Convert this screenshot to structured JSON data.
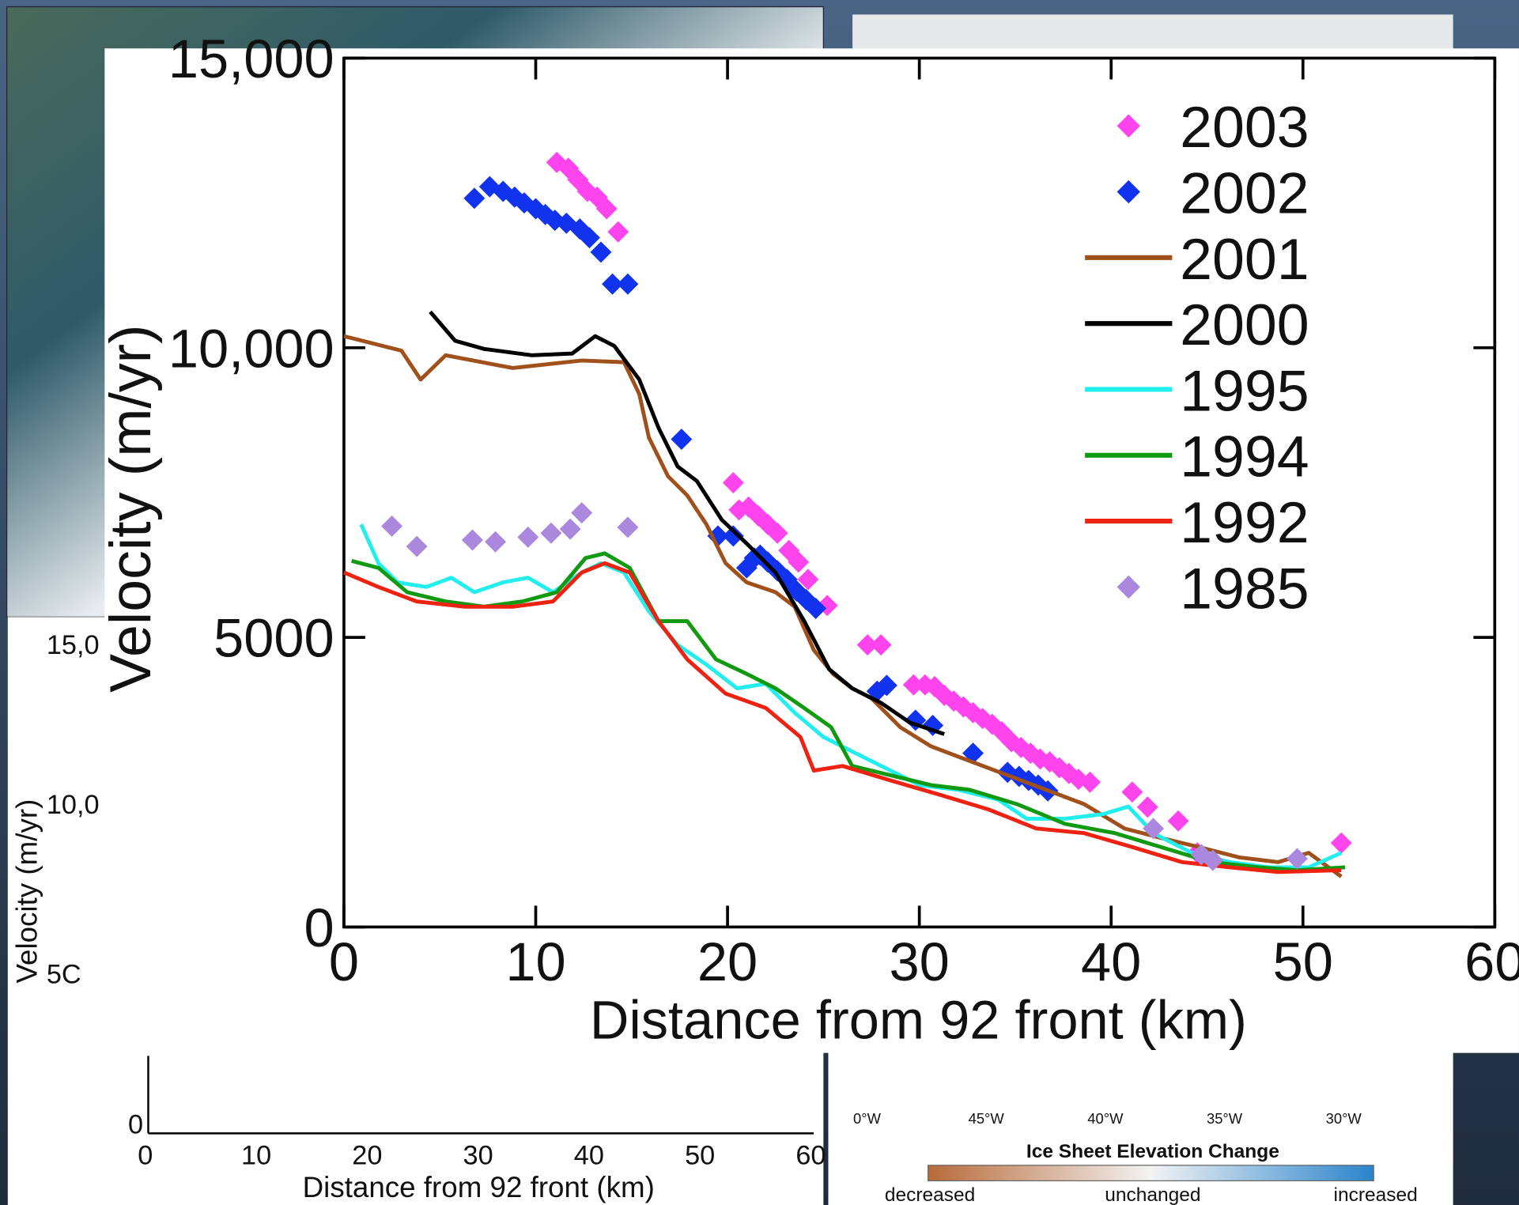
{
  "chart_data": {
    "type": "line",
    "xlabel": "Distance from 92 front (km)",
    "ylabel": "Velocity (m/yr)",
    "xlim": [
      0,
      60
    ],
    "ylim": [
      0,
      15000
    ],
    "xticks": [
      0,
      10,
      20,
      30,
      40,
      50,
      60
    ],
    "yticks": [
      0,
      5000,
      {
        "value": 10000,
        "label": "10,000"
      },
      {
        "value": 15000,
        "label": "15,000"
      }
    ],
    "legend": "upper right",
    "series": [
      {
        "name": "2003",
        "color": "#ff44ee",
        "mode": "markers",
        "x": [
          11.1,
          11.7,
          12.2,
          12.7,
          13.2,
          13.7,
          14.3,
          20.3,
          20.6,
          21.1,
          21.6,
          22.1,
          22.6,
          23.2,
          23.7,
          24.2,
          25.2,
          27.3,
          28.0,
          29.7,
          30.3,
          30.8,
          31.3,
          31.8,
          32.3,
          32.8,
          33.3,
          33.8,
          34.3,
          34.8,
          35.3,
          35.8,
          36.3,
          36.8,
          37.3,
          37.8,
          38.3,
          38.9,
          41.1,
          41.9,
          43.5,
          44.5,
          52.0
        ],
        "values": [
          13200,
          13100,
          12900,
          12700,
          12600,
          12400,
          12000,
          7670,
          7200,
          7250,
          7100,
          6950,
          6800,
          6500,
          6300,
          6000,
          5550,
          4870,
          4870,
          4180,
          4180,
          4150,
          4000,
          3900,
          3800,
          3700,
          3600,
          3500,
          3370,
          3200,
          3100,
          3000,
          2900,
          2850,
          2750,
          2650,
          2550,
          2500,
          2330,
          2070,
          1830,
          1280,
          1450
        ]
      },
      {
        "name": "2002",
        "color": "#1133ee",
        "mode": "markers",
        "x": [
          6.8,
          7.6,
          8.3,
          8.9,
          9.4,
          10.0,
          10.5,
          11.0,
          11.6,
          12.3,
          12.8,
          13.4,
          14.0,
          14.8,
          17.6,
          19.5,
          20.3,
          21.0,
          21.4,
          21.7,
          22.1,
          22.6,
          23.1,
          23.6,
          24.1,
          24.6,
          27.8,
          28.3,
          29.8,
          30.7,
          32.8,
          34.6,
          35.2,
          35.7,
          36.2,
          36.7
        ],
        "values": [
          12580,
          12780,
          12700,
          12600,
          12500,
          12400,
          12300,
          12200,
          12150,
          12050,
          11900,
          11650,
          11100,
          11100,
          8420,
          6750,
          6750,
          6200,
          6370,
          6420,
          6300,
          6150,
          6000,
          5800,
          5650,
          5500,
          4070,
          4170,
          3570,
          3480,
          3000,
          2670,
          2600,
          2530,
          2450,
          2350
        ]
      },
      {
        "name": "2001",
        "color": "#a0501a",
        "mode": "line",
        "x": [
          0,
          3,
          4,
          5.3,
          8.8,
          12.4,
          14.6,
          15.4,
          15.9,
          16.9,
          17.9,
          18.9,
          19.9,
          21,
          22.5,
          23.5,
          24.5,
          25.5,
          26.5,
          27.5,
          29,
          30.6,
          32.6,
          34.6,
          36.6,
          38.6,
          40.7,
          42.7,
          44.7,
          46.7,
          48.7,
          50.3,
          52
        ],
        "values": [
          10200,
          9950,
          9450,
          9870,
          9650,
          9780,
          9750,
          9200,
          8450,
          7780,
          7450,
          6950,
          6280,
          5950,
          5780,
          5530,
          4780,
          4370,
          4120,
          3950,
          3450,
          3120,
          2870,
          2620,
          2370,
          2120,
          1700,
          1530,
          1370,
          1200,
          1120,
          1280,
          870
        ]
      },
      {
        "name": "2000",
        "color": "#000000",
        "mode": "line",
        "x": [
          4.5,
          5.8,
          7.3,
          9.8,
          11.9,
          13.1,
          14.1,
          15.4,
          16.4,
          17.4,
          18.4,
          19.7,
          21,
          22.5,
          24,
          25.3,
          26.5,
          28,
          29.5,
          31.3
        ],
        "values": [
          10620,
          10120,
          9980,
          9870,
          9900,
          10200,
          10030,
          9450,
          8620,
          7950,
          7700,
          7030,
          6620,
          6120,
          5280,
          4450,
          4120,
          3870,
          3530,
          3330
        ]
      },
      {
        "name": "1995",
        "color": "#22eeee",
        "mode": "line",
        "x": [
          0.9,
          1.8,
          2.8,
          4.3,
          5.6,
          6.8,
          8.3,
          9.6,
          10.9,
          12.4,
          13.4,
          14.6,
          15.9,
          17.4,
          18.9,
          20.5,
          22,
          23.5,
          25,
          26.5,
          28.5,
          30,
          32,
          34.1,
          35.6,
          37.6,
          39.6,
          40.9,
          42.2,
          44.2,
          46.2,
          48.2,
          50.3,
          52
        ],
        "values": [
          6950,
          6280,
          5950,
          5870,
          6030,
          5780,
          5950,
          6030,
          5780,
          6120,
          6280,
          6120,
          5450,
          4870,
          4530,
          4120,
          4200,
          3700,
          3280,
          3030,
          2700,
          2450,
          2370,
          2200,
          1870,
          1870,
          1950,
          2080,
          1620,
          1280,
          1120,
          1030,
          1030,
          1280
        ]
      },
      {
        "name": "1994",
        "color": "#119911",
        "mode": "line",
        "x": [
          0.4,
          1.8,
          3.3,
          5.3,
          7.3,
          9.3,
          11.1,
          12.6,
          13.6,
          14.9,
          16.4,
          17.9,
          19.4,
          21,
          22.5,
          24,
          25.4,
          26.5,
          28.5,
          30.6,
          32.6,
          35.1,
          37.6,
          40.2,
          42.7,
          45.2,
          47.7,
          49.7,
          52.2
        ],
        "values": [
          6320,
          6200,
          5780,
          5620,
          5530,
          5620,
          5780,
          6370,
          6450,
          6200,
          5280,
          5280,
          4620,
          4370,
          4120,
          3780,
          3450,
          2780,
          2620,
          2450,
          2370,
          2120,
          1780,
          1620,
          1370,
          1120,
          1030,
          980,
          1030
        ]
      },
      {
        "name": "1992",
        "color": "#ee2211",
        "mode": "line",
        "x": [
          0,
          1.8,
          3.8,
          6.3,
          8.8,
          10.9,
          12.4,
          13.6,
          14.9,
          16.4,
          17.9,
          19.9,
          22,
          23.8,
          24.5,
          26,
          28.5,
          31.1,
          33.6,
          36.1,
          38.6,
          41.2,
          43.7,
          46.2,
          48.7,
          52
        ],
        "values": [
          6120,
          5870,
          5620,
          5530,
          5530,
          5620,
          6120,
          6280,
          6120,
          5280,
          4620,
          4030,
          3780,
          3280,
          2700,
          2780,
          2530,
          2280,
          2030,
          1700,
          1620,
          1370,
          1120,
          1030,
          950,
          980
        ]
      },
      {
        "name": "1985",
        "color": "#aa88dd",
        "mode": "markers",
        "x": [
          2.5,
          3.8,
          6.7,
          7.9,
          9.6,
          10.8,
          11.8,
          12.4,
          14.8,
          42.2,
          44.7,
          45.3,
          49.7
        ],
        "values": [
          6920,
          6570,
          6680,
          6650,
          6730,
          6800,
          6870,
          7150,
          6900,
          1700,
          1250,
          1150,
          1180
        ]
      }
    ]
  },
  "background": {
    "left_chart": {
      "ytick_labels": [
        "15,0",
        "10,0",
        "5C"
      ],
      "ylabel": "Velocity (m/yr)",
      "zero": "0",
      "xtick_labels": [
        "0",
        "10",
        "20",
        "30",
        "40",
        "50",
        "60"
      ],
      "xlabel": "Distance from 92 front (km)"
    },
    "map": {
      "longitudes": [
        "0°W",
        "45°W",
        "40°W",
        "35°W",
        "30°W"
      ],
      "legend_title": "Ice Sheet Elevation Change",
      "scale_labels": [
        "decreased",
        "unchanged",
        "increased"
      ]
    }
  }
}
